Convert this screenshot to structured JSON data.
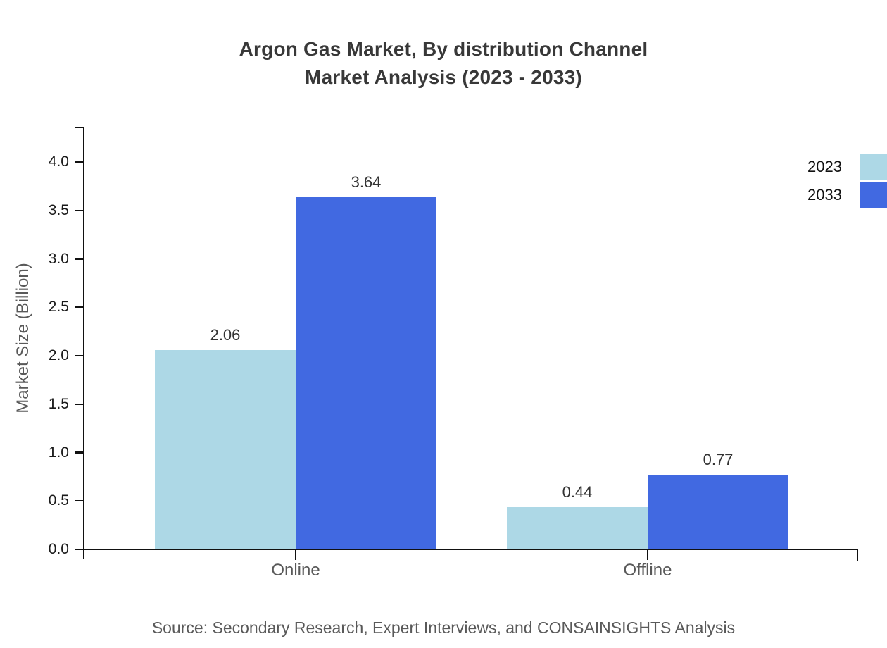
{
  "title_line1": "Argon Gas Market, By distribution Channel",
  "title_line2": "Market Analysis (2023 - 2033)",
  "y_axis_title": "Market Size (Billion)",
  "source": "Source: Secondary Research, Expert Interviews, and CONSAINSIGHTS Analysis",
  "colors": {
    "series_2023": "#ADD8E6",
    "series_2033": "#4169E1",
    "axis": "#111111",
    "title_text": "#383838",
    "muted_text": "#595959"
  },
  "chart_data": {
    "type": "bar",
    "title": "Argon Gas Market, By distribution Channel Market Analysis (2023 - 2033)",
    "categories": [
      "Online",
      "Offline"
    ],
    "series": [
      {
        "name": "2023",
        "color": "#ADD8E6",
        "values": [
          2.06,
          0.44
        ]
      },
      {
        "name": "2033",
        "color": "#4169E1",
        "values": [
          3.64,
          0.77
        ]
      }
    ],
    "value_labels": [
      [
        "2.06",
        "0.44"
      ],
      [
        "3.64",
        "0.77"
      ]
    ],
    "xlabel": "",
    "ylabel": "Market Size (Billion)",
    "ylim": [
      0.0,
      4.0
    ],
    "ytick_step": 0.5,
    "ytick_labels": [
      "0.0",
      "0.5",
      "1.0",
      "1.5",
      "2.0",
      "2.5",
      "3.0",
      "3.5",
      "4.0"
    ],
    "grid": false,
    "legend_position": "upper right",
    "value_label_decimals": 2
  }
}
